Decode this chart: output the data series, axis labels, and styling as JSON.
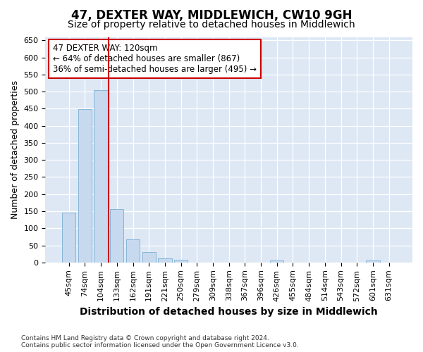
{
  "title": "47, DEXTER WAY, MIDDLEWICH, CW10 9GH",
  "subtitle": "Size of property relative to detached houses in Middlewich",
  "xlabel": "Distribution of detached houses by size in Middlewich",
  "ylabel": "Number of detached properties",
  "categories": [
    "45sqm",
    "74sqm",
    "104sqm",
    "133sqm",
    "162sqm",
    "191sqm",
    "221sqm",
    "250sqm",
    "279sqm",
    "309sqm",
    "338sqm",
    "367sqm",
    "396sqm",
    "426sqm",
    "455sqm",
    "484sqm",
    "514sqm",
    "543sqm",
    "572sqm",
    "601sqm",
    "631sqm"
  ],
  "values": [
    145,
    448,
    505,
    157,
    67,
    30,
    13,
    8,
    0,
    0,
    0,
    0,
    0,
    6,
    0,
    0,
    0,
    0,
    0,
    6,
    0
  ],
  "bar_color": "#c6d9ee",
  "bar_edge_color": "#7aaed4",
  "vline_x_index": 2.5,
  "vline_color": "#cc0000",
  "annotation_line1": "47 DEXTER WAY: 120sqm",
  "annotation_line2": "← 64% of detached houses are smaller (867)",
  "annotation_line3": "36% of semi-detached houses are larger (495) →",
  "annotation_box_color": "#ffffff",
  "annotation_box_edge_color": "#cc0000",
  "ylim": [
    0,
    660
  ],
  "yticks": [
    0,
    50,
    100,
    150,
    200,
    250,
    300,
    350,
    400,
    450,
    500,
    550,
    600,
    650
  ],
  "plot_bg_color": "#dde8f4",
  "footer": "Contains HM Land Registry data © Crown copyright and database right 2024.\nContains public sector information licensed under the Open Government Licence v3.0.",
  "title_fontsize": 12,
  "subtitle_fontsize": 10,
  "xlabel_fontsize": 10,
  "ylabel_fontsize": 9,
  "tick_fontsize": 8,
  "annotation_fontsize": 8.5,
  "footer_fontsize": 6.5
}
